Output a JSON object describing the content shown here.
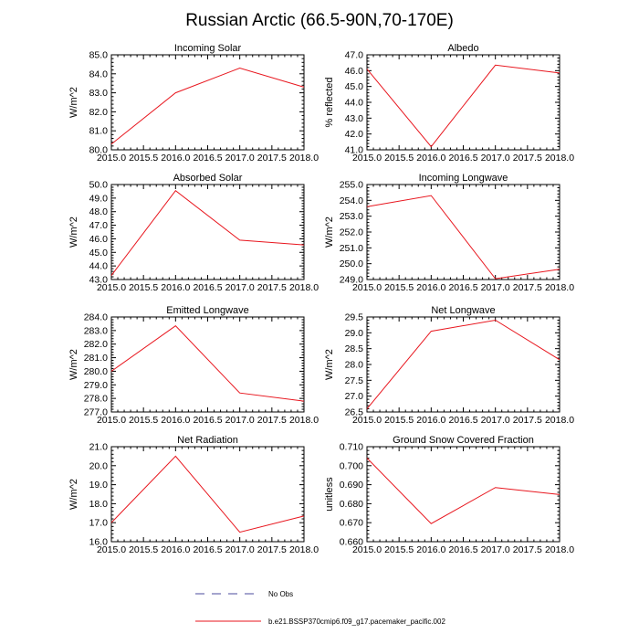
{
  "figure": {
    "title": "Russian Arctic (66.5-90N,70-170E)"
  },
  "colors": {
    "model": "#e8161e",
    "obs": "#4b4b9c",
    "axis": "#000000"
  },
  "chart_data": [
    {
      "type": "line",
      "title": "Incoming Solar",
      "ylabel": "W/m^2",
      "x": [
        2015,
        2016,
        2017,
        2018
      ],
      "xlim": [
        2015,
        2018
      ],
      "xticks": [
        2015,
        2015.5,
        2016,
        2016.5,
        2017,
        2017.5,
        2018
      ],
      "xtick_labels": [
        "2015.0",
        "2015.5",
        "2016.0",
        "2016.5",
        "2017.0",
        "2017.5",
        "2018.0"
      ],
      "ylim": [
        80,
        85
      ],
      "yticks": [
        80,
        81,
        82,
        83,
        84,
        85
      ],
      "ytick_labels": [
        "80.0",
        "81.0",
        "82.0",
        "83.0",
        "84.0",
        "85.0"
      ],
      "series": [
        {
          "name": "b.e21.BSSP370cmip6.f09_g17.pacemaker_pacific.002",
          "values": [
            80.3,
            83.0,
            84.3,
            83.3
          ]
        }
      ]
    },
    {
      "type": "line",
      "title": "Albedo",
      "ylabel": "% reflected",
      "x": [
        2015,
        2016,
        2017,
        2018
      ],
      "xlim": [
        2015,
        2018
      ],
      "xticks": [
        2015,
        2015.5,
        2016,
        2016.5,
        2017,
        2017.5,
        2018
      ],
      "xtick_labels": [
        "2015.0",
        "2015.5",
        "2016.0",
        "2016.5",
        "2017.0",
        "2017.5",
        "2018.0"
      ],
      "ylim": [
        41,
        47
      ],
      "yticks": [
        41,
        42,
        43,
        44,
        45,
        46,
        47
      ],
      "ytick_labels": [
        "41.0",
        "42.0",
        "43.0",
        "44.0",
        "45.0",
        "46.0",
        "47.0"
      ],
      "series": [
        {
          "name": "b.e21.BSSP370cmip6.f09_g17.pacemaker_pacific.002",
          "values": [
            46.1,
            41.2,
            46.35,
            45.85
          ]
        }
      ]
    },
    {
      "type": "line",
      "title": "Absorbed Solar",
      "ylabel": "W/m^2",
      "x": [
        2015,
        2016,
        2017,
        2018
      ],
      "xlim": [
        2015,
        2018
      ],
      "xticks": [
        2015,
        2015.5,
        2016,
        2016.5,
        2017,
        2017.5,
        2018
      ],
      "xtick_labels": [
        "2015.0",
        "2015.5",
        "2016.0",
        "2016.5",
        "2017.0",
        "2017.5",
        "2018.0"
      ],
      "ylim": [
        43,
        50
      ],
      "yticks": [
        43,
        44,
        45,
        46,
        47,
        48,
        49,
        50
      ],
      "ytick_labels": [
        "43.0",
        "44.0",
        "45.0",
        "46.0",
        "47.0",
        "48.0",
        "49.0",
        "50.0"
      ],
      "series": [
        {
          "name": "b.e21.BSSP370cmip6.f09_g17.pacemaker_pacific.002",
          "values": [
            43.3,
            49.55,
            45.9,
            45.55
          ]
        }
      ]
    },
    {
      "type": "line",
      "title": "Incoming Longwave",
      "ylabel": "W/m^2",
      "x": [
        2015,
        2016,
        2017,
        2018
      ],
      "xlim": [
        2015,
        2018
      ],
      "xticks": [
        2015,
        2015.5,
        2016,
        2016.5,
        2017,
        2017.5,
        2018
      ],
      "xtick_labels": [
        "2015.0",
        "2015.5",
        "2016.0",
        "2016.5",
        "2017.0",
        "2017.5",
        "2018.0"
      ],
      "ylim": [
        249,
        255
      ],
      "yticks": [
        249,
        250,
        251,
        252,
        253,
        254,
        255
      ],
      "ytick_labels": [
        "249.0",
        "250.0",
        "251.0",
        "252.0",
        "253.0",
        "254.0",
        "255.0"
      ],
      "series": [
        {
          "name": "b.e21.BSSP370cmip6.f09_g17.pacemaker_pacific.002",
          "values": [
            253.6,
            254.3,
            249.05,
            249.65
          ]
        }
      ]
    },
    {
      "type": "line",
      "title": "Emitted Longwave",
      "ylabel": "W/m^2",
      "x": [
        2015,
        2016,
        2017,
        2018
      ],
      "xlim": [
        2015,
        2018
      ],
      "xticks": [
        2015,
        2015.5,
        2016,
        2016.5,
        2017,
        2017.5,
        2018
      ],
      "xtick_labels": [
        "2015.0",
        "2015.5",
        "2016.0",
        "2016.5",
        "2017.0",
        "2017.5",
        "2018.0"
      ],
      "ylim": [
        277,
        284
      ],
      "yticks": [
        277,
        278,
        279,
        280,
        281,
        282,
        283,
        284
      ],
      "ytick_labels": [
        "277.0",
        "278.0",
        "279.0",
        "280.0",
        "281.0",
        "282.0",
        "283.0",
        "284.0"
      ],
      "series": [
        {
          "name": "b.e21.BSSP370cmip6.f09_g17.pacemaker_pacific.002",
          "values": [
            280.0,
            283.35,
            278.4,
            277.8
          ]
        }
      ]
    },
    {
      "type": "line",
      "title": "Net Longwave",
      "ylabel": "W/m^2",
      "x": [
        2015,
        2016,
        2017,
        2018
      ],
      "xlim": [
        2015,
        2018
      ],
      "xticks": [
        2015,
        2015.5,
        2016,
        2016.5,
        2017,
        2017.5,
        2018
      ],
      "xtick_labels": [
        "2015.0",
        "2015.5",
        "2016.0",
        "2016.5",
        "2017.0",
        "2017.5",
        "2018.0"
      ],
      "ylim": [
        26.5,
        29.5
      ],
      "yticks": [
        26.5,
        27,
        27.5,
        28,
        28.5,
        29,
        29.5
      ],
      "ytick_labels": [
        "26.5",
        "27.0",
        "27.5",
        "28.0",
        "28.5",
        "29.0",
        "29.5"
      ],
      "series": [
        {
          "name": "b.e21.BSSP370cmip6.f09_g17.pacemaker_pacific.002",
          "values": [
            26.6,
            29.05,
            29.4,
            28.15
          ]
        }
      ]
    },
    {
      "type": "line",
      "title": "Net Radiation",
      "ylabel": "W/m^2",
      "x": [
        2015,
        2016,
        2017,
        2018
      ],
      "xlim": [
        2015,
        2018
      ],
      "xticks": [
        2015,
        2015.5,
        2016,
        2016.5,
        2017,
        2017.5,
        2018
      ],
      "xtick_labels": [
        "2015.0",
        "2015.5",
        "2016.0",
        "2016.5",
        "2017.0",
        "2017.5",
        "2018.0"
      ],
      "ylim": [
        16,
        21
      ],
      "yticks": [
        16,
        17,
        18,
        19,
        20,
        21
      ],
      "ytick_labels": [
        "16.0",
        "17.0",
        "18.0",
        "19.0",
        "20.0",
        "21.0"
      ],
      "series": [
        {
          "name": "b.e21.BSSP370cmip6.f09_g17.pacemaker_pacific.002",
          "values": [
            17.0,
            20.5,
            16.5,
            17.35
          ]
        }
      ]
    },
    {
      "type": "line",
      "title": "Ground Snow Covered Fraction",
      "ylabel": "unitless",
      "x": [
        2015,
        2016,
        2017,
        2018
      ],
      "xlim": [
        2015,
        2018
      ],
      "xticks": [
        2015,
        2015.5,
        2016,
        2016.5,
        2017,
        2017.5,
        2018
      ],
      "xtick_labels": [
        "2015.0",
        "2015.5",
        "2016.0",
        "2016.5",
        "2017.0",
        "2017.5",
        "2018.0"
      ],
      "ylim": [
        0.66,
        0.71
      ],
      "yticks": [
        0.66,
        0.67,
        0.68,
        0.69,
        0.7,
        0.71
      ],
      "ytick_labels": [
        "0.660",
        "0.670",
        "0.680",
        "0.690",
        "0.700",
        "0.710"
      ],
      "series": [
        {
          "name": "b.e21.BSSP370cmip6.f09_g17.pacemaker_pacific.002",
          "values": [
            0.704,
            0.6695,
            0.6885,
            0.6848
          ]
        }
      ]
    }
  ],
  "legend": {
    "placement": "bottom-center",
    "items": [
      {
        "label": "No Obs",
        "style": "dashed",
        "color": "#4b4b9c"
      },
      {
        "label": "b.e21.BSSP370cmip6.f09_g17.pacemaker_pacific.002",
        "style": "solid",
        "color": "#e8161e"
      }
    ]
  }
}
